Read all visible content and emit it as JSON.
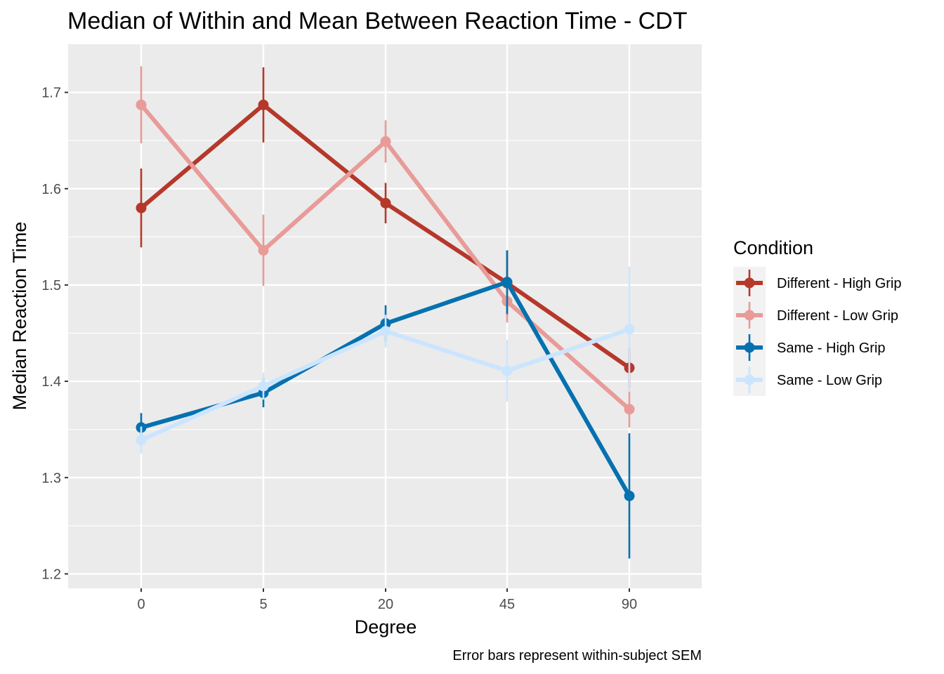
{
  "chart_data": {
    "type": "line",
    "title": "Median of Within and Mean Between Reaction Time - CDT",
    "xlabel": "Degree",
    "ylabel": "Median Reaction Time",
    "caption": "Error bars represent within-subject SEM",
    "categories": [
      "0",
      "5",
      "20",
      "45",
      "90"
    ],
    "ylim": [
      1.185,
      1.75
    ],
    "yticks": [
      1.2,
      1.3,
      1.4,
      1.5,
      1.6,
      1.7
    ],
    "grid": true,
    "legend": {
      "title": "Condition",
      "position": "right"
    },
    "series": [
      {
        "name": "Different - High Grip",
        "color": "#B5382A",
        "values": [
          1.58,
          1.687,
          1.585,
          1.502,
          1.414
        ],
        "err": [
          0.041,
          0.039,
          0.021,
          0.034,
          0.021
        ]
      },
      {
        "name": "Different - Low Grip",
        "color": "#E89B98",
        "values": [
          1.687,
          1.536,
          1.649,
          1.483,
          1.371
        ],
        "err": [
          0.04,
          0.037,
          0.022,
          0.022,
          0.019
        ]
      },
      {
        "name": "Same - High Grip",
        "color": "#0571B0",
        "values": [
          1.352,
          1.388,
          1.46,
          1.503,
          1.281
        ],
        "err": [
          0.015,
          0.015,
          0.019,
          0.033,
          0.065
        ]
      },
      {
        "name": "Same - Low Grip",
        "color": "#CCE5FF",
        "values": [
          1.339,
          1.395,
          1.452,
          1.411,
          1.454
        ],
        "err": [
          0.014,
          0.014,
          0.017,
          0.032,
          0.065
        ]
      }
    ]
  }
}
